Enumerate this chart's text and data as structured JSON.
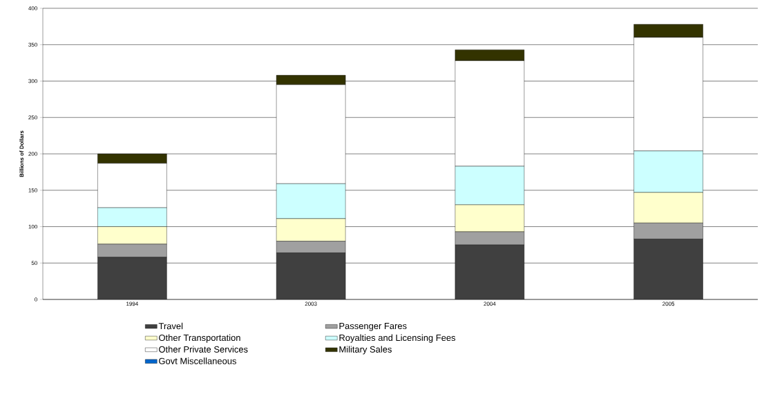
{
  "chart_data": {
    "type": "bar",
    "stacked": true,
    "ylabel": "Billions of Dollars",
    "categories": [
      "1994",
      "2003",
      "2004",
      "2005"
    ],
    "ylim": [
      0,
      400
    ],
    "yticks": [
      0,
      50,
      100,
      150,
      200,
      250,
      300,
      350,
      400
    ],
    "grid": "y",
    "legend": "bottom",
    "series": [
      {
        "name": "Travel",
        "color": "#404040",
        "values": [
          58,
          64,
          75,
          83
        ]
      },
      {
        "name": "Passenger Fares",
        "color": "#a0a0a0",
        "values": [
          18,
          16,
          18,
          22
        ]
      },
      {
        "name": "Other Transportation",
        "color": "#ffffcc",
        "values": [
          24,
          31,
          37,
          42
        ]
      },
      {
        "name": "Royalties and Licensing Fees",
        "color": "#ccffff",
        "values": [
          26,
          48,
          53,
          57
        ]
      },
      {
        "name": "Other Private Services",
        "color": "#ffffff",
        "values": [
          61,
          136,
          145,
          156
        ]
      },
      {
        "name": "Military Sales",
        "color": "#333300",
        "values": [
          13,
          13,
          15,
          18
        ]
      },
      {
        "name": "Govt Miscellaneous",
        "color": "#0066cc",
        "values": [
          0,
          0,
          0,
          0
        ]
      }
    ]
  }
}
